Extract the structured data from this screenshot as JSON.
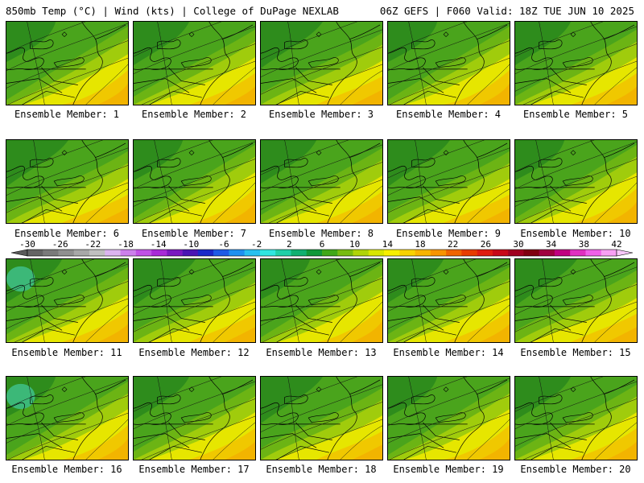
{
  "header": {
    "left": "850mb Temp (°C) | Wind (kts) | College of DuPage NEXLAB",
    "right": "06Z GEFS | F060 Valid: 18Z TUE JUN 10 2025"
  },
  "panels": [
    {
      "label": "Ensemble Member: 1"
    },
    {
      "label": "Ensemble Member: 2"
    },
    {
      "label": "Ensemble Member: 3"
    },
    {
      "label": "Ensemble Member: 4"
    },
    {
      "label": "Ensemble Member: 5"
    },
    {
      "label": "Ensemble Member: 6"
    },
    {
      "label": "Ensemble Member: 7"
    },
    {
      "label": "Ensemble Member: 8"
    },
    {
      "label": "Ensemble Member: 9"
    },
    {
      "label": "Ensemble Member: 10"
    },
    {
      "label": "Ensemble Member: 11"
    },
    {
      "label": "Ensemble Member: 12"
    },
    {
      "label": "Ensemble Member: 13"
    },
    {
      "label": "Ensemble Member: 14"
    },
    {
      "label": "Ensemble Member: 15"
    },
    {
      "label": "Ensemble Member: 16"
    },
    {
      "label": "Ensemble Member: 17"
    },
    {
      "label": "Ensemble Member: 18"
    },
    {
      "label": "Ensemble Member: 19"
    },
    {
      "label": "Ensemble Member: 20"
    }
  ],
  "colorbar": {
    "tick_labels": [
      "-30",
      "-26",
      "-22",
      "-18",
      "-14",
      "-10",
      "-6",
      "-2",
      "2",
      "6",
      "10",
      "14",
      "18",
      "22",
      "26",
      "30",
      "34",
      "38",
      "42"
    ],
    "colors": [
      "#646464",
      "#7a7a7a",
      "#909090",
      "#a8a8a8",
      "#c0c0c0",
      "#dcb4f0",
      "#cc80ec",
      "#c050e6",
      "#a82ad8",
      "#7a18c0",
      "#4a14b4",
      "#1a28c8",
      "#1e5ae6",
      "#1e90f0",
      "#28c0f0",
      "#30e6e0",
      "#20d0a8",
      "#10b070",
      "#109838",
      "#40a818",
      "#78bc10",
      "#b0d408",
      "#d8e600",
      "#f8f000",
      "#f8d200",
      "#f8b400",
      "#f89400",
      "#f06400",
      "#e83c00",
      "#e01c10",
      "#c80818",
      "#a00020",
      "#800010",
      "#a00040",
      "#c00080",
      "#e030c0",
      "#f060e8",
      "#f8a0f4"
    ]
  }
}
